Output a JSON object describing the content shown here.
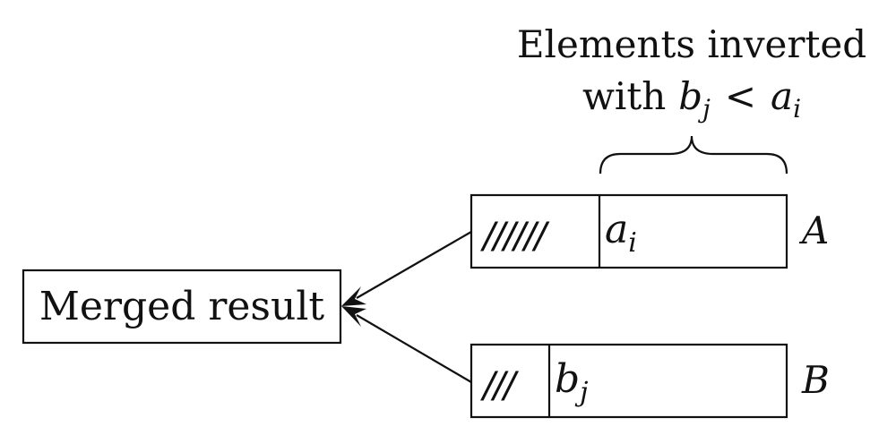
{
  "annotation": {
    "line1": "Elements inverted",
    "line2_prefix": "with",
    "lhs_var": "b",
    "lhs_sub": "j",
    "relation": "<",
    "rhs_var": "a",
    "rhs_sub": "i"
  },
  "merged": {
    "label": "Merged result"
  },
  "array_a": {
    "name": "A",
    "hatch": "//////",
    "element_var": "a",
    "element_sub": "i"
  },
  "array_b": {
    "name": "B",
    "hatch": "///",
    "element_var": "b",
    "element_sub": "j"
  }
}
